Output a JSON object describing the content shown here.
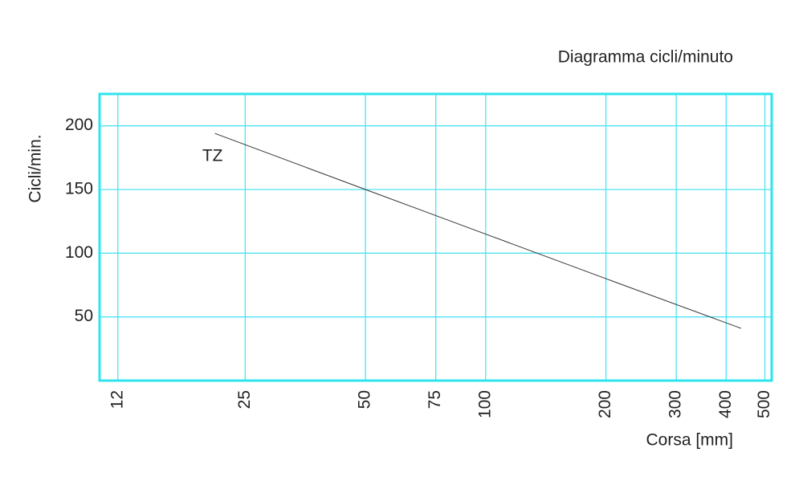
{
  "chart_data": {
    "type": "line",
    "title": "Diagramma cicli/minuto",
    "x_label": "Corsa [mm]",
    "y_label": "Cicli/min.",
    "x": [
      21,
      50,
      100,
      200,
      436
    ],
    "series": [
      {
        "name": "TZ",
        "color": "#333333",
        "values": [
          194,
          150,
          115,
          80,
          41
        ]
      }
    ],
    "xlim": [
      10.8,
      520
    ],
    "xticks": [
      12,
      25,
      50,
      75,
      100,
      200,
      300,
      400,
      500
    ],
    "xscale": "log",
    "ylim": [
      0,
      225
    ],
    "yticks": [
      50,
      100,
      150,
      200
    ],
    "grid": true,
    "grid_color": "#4fe3f0",
    "frame_color": "#2fe4ee"
  }
}
